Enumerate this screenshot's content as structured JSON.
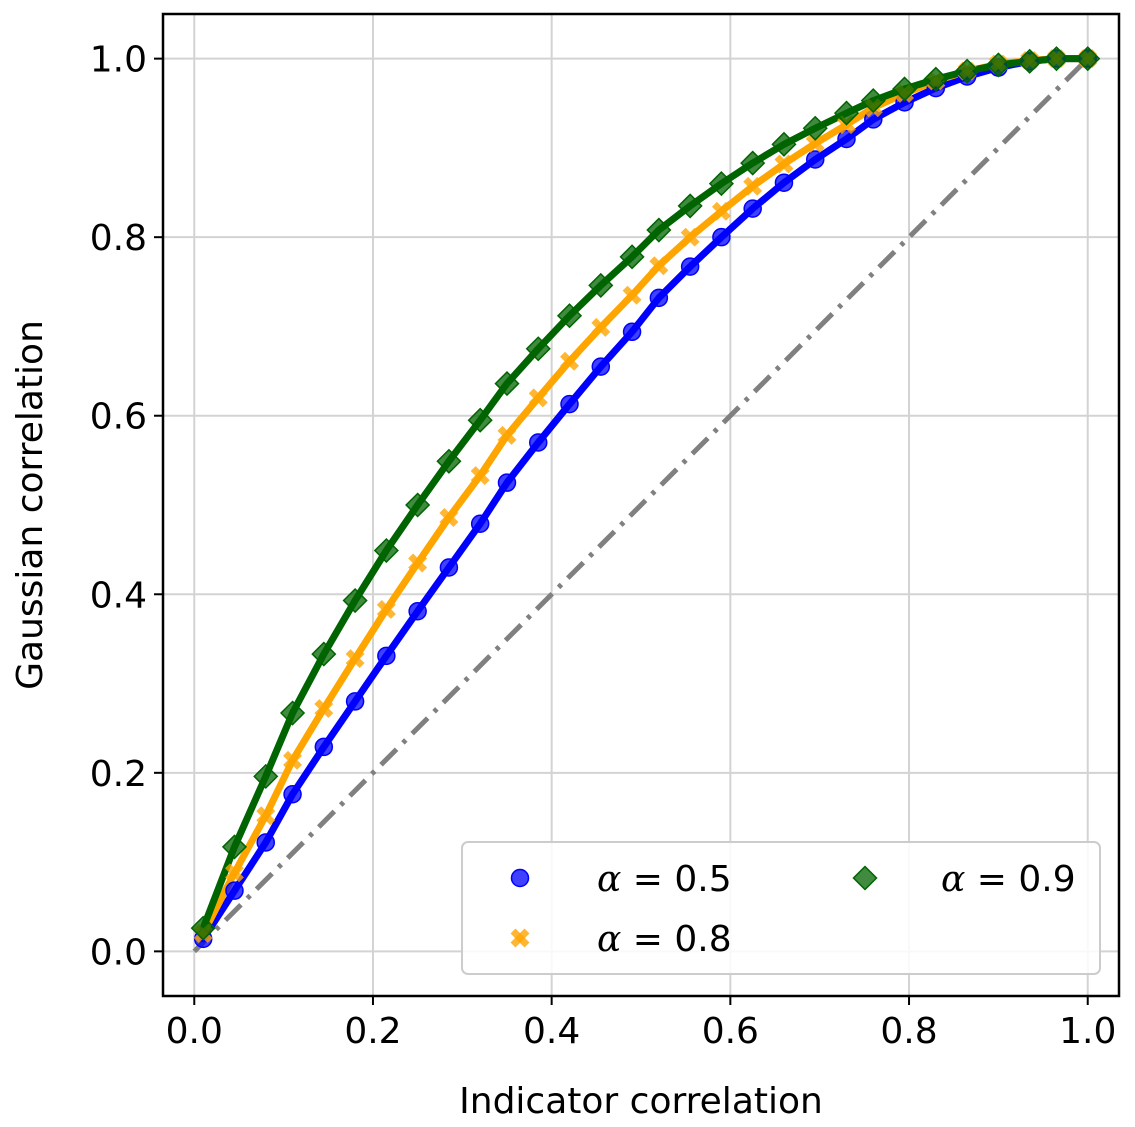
{
  "chart_data": {
    "type": "line",
    "xlabel": "Indicator correlation",
    "ylabel": "Gaussian correlation",
    "xlim": [
      -0.035,
      1.035
    ],
    "ylim": [
      -0.05,
      1.05
    ],
    "xticks": [
      "0.0",
      "0.2",
      "0.4",
      "0.6",
      "0.8",
      "1.0"
    ],
    "yticks": [
      "0.0",
      "0.2",
      "0.4",
      "0.6",
      "0.8",
      "1.0"
    ],
    "grid": true,
    "legend": {
      "placement": "lower-right",
      "columns": 2
    },
    "reference_line": {
      "style": "dash-dot",
      "color": "#808080",
      "x": [
        0,
        1
      ],
      "y": [
        0,
        1
      ]
    },
    "series": [
      {
        "name": "α = 0.5",
        "legend_alpha": "α",
        "legend_value": " = 0.5",
        "color": "#0000ff",
        "marker": "circle",
        "x": [
          0.01,
          0.045,
          0.08,
          0.11,
          0.145,
          0.18,
          0.215,
          0.25,
          0.285,
          0.32,
          0.35,
          0.385,
          0.42,
          0.455,
          0.49,
          0.52,
          0.555,
          0.59,
          0.625,
          0.66,
          0.695,
          0.73,
          0.76,
          0.795,
          0.83,
          0.865,
          0.9,
          0.935,
          0.965,
          1.0
        ],
        "y": [
          0.014,
          0.068,
          0.122,
          0.176,
          0.229,
          0.28,
          0.331,
          0.381,
          0.43,
          0.479,
          0.525,
          0.57,
          0.613,
          0.655,
          0.694,
          0.732,
          0.767,
          0.8,
          0.832,
          0.861,
          0.887,
          0.91,
          0.932,
          0.951,
          0.967,
          0.98,
          0.99,
          0.997,
          1.0,
          1.0
        ]
      },
      {
        "name": "α = 0.8",
        "legend_alpha": "α",
        "legend_value": " = 0.8",
        "color": "#ffa500",
        "marker": "x",
        "x": [
          0.01,
          0.045,
          0.08,
          0.11,
          0.145,
          0.18,
          0.215,
          0.25,
          0.285,
          0.32,
          0.35,
          0.385,
          0.42,
          0.455,
          0.49,
          0.52,
          0.555,
          0.59,
          0.625,
          0.66,
          0.695,
          0.73,
          0.76,
          0.795,
          0.83,
          0.865,
          0.9,
          0.935,
          0.965,
          1.0
        ],
        "y": [
          0.02,
          0.088,
          0.152,
          0.214,
          0.272,
          0.328,
          0.383,
          0.435,
          0.486,
          0.533,
          0.578,
          0.62,
          0.661,
          0.699,
          0.735,
          0.768,
          0.8,
          0.829,
          0.857,
          0.882,
          0.905,
          0.926,
          0.945,
          0.961,
          0.975,
          0.986,
          0.994,
          0.998,
          1.0,
          1.0
        ]
      },
      {
        "name": "α = 0.9",
        "legend_alpha": "α",
        "legend_value": " = 0.9",
        "color": "#006400",
        "marker": "diamond",
        "x": [
          0.01,
          0.045,
          0.08,
          0.11,
          0.145,
          0.18,
          0.215,
          0.25,
          0.285,
          0.32,
          0.35,
          0.385,
          0.42,
          0.455,
          0.49,
          0.52,
          0.555,
          0.59,
          0.625,
          0.66,
          0.695,
          0.73,
          0.76,
          0.795,
          0.83,
          0.865,
          0.9,
          0.935,
          0.965,
          1.0
        ],
        "y": [
          0.026,
          0.117,
          0.196,
          0.267,
          0.333,
          0.393,
          0.449,
          0.5,
          0.549,
          0.595,
          0.636,
          0.675,
          0.712,
          0.746,
          0.778,
          0.808,
          0.835,
          0.86,
          0.883,
          0.904,
          0.922,
          0.939,
          0.953,
          0.966,
          0.977,
          0.986,
          0.993,
          0.997,
          1.0,
          1.0
        ]
      }
    ]
  }
}
